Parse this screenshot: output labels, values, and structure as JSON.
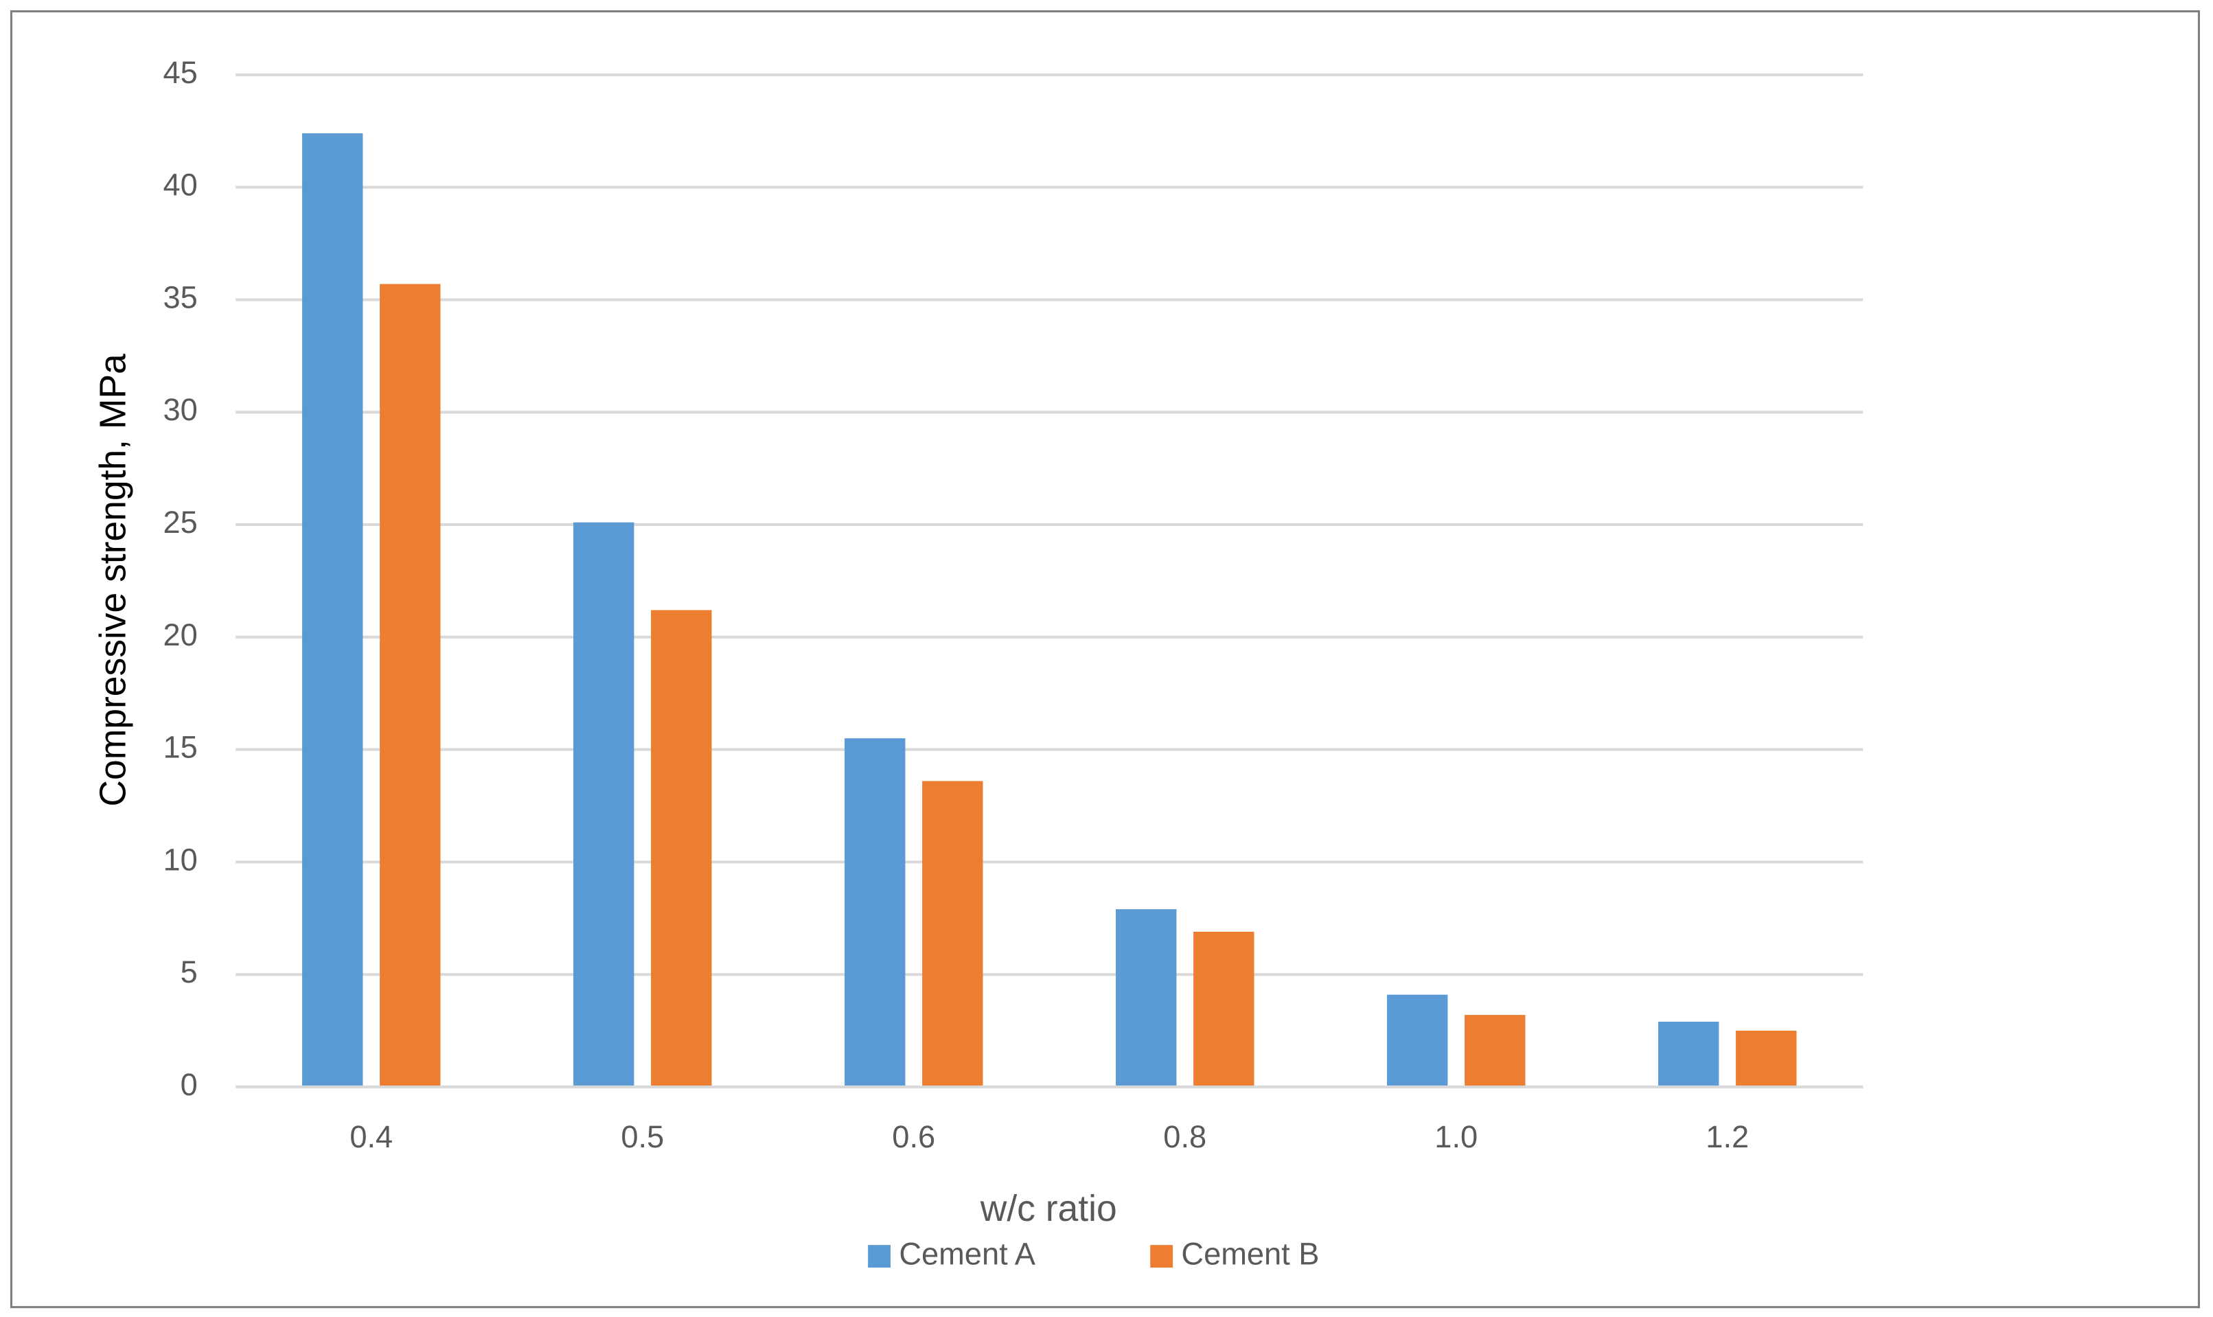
{
  "chart_data": {
    "type": "bar",
    "x_label": "w/c ratio",
    "y_label": "Compressive strength, MPa",
    "categories": [
      "0.4",
      "0.5",
      "0.6",
      "0.8",
      "1.0",
      "1.2"
    ],
    "series": [
      {
        "name": "Cement A",
        "color": "#5b9bd5",
        "values": [
          42.4,
          25.1,
          15.5,
          7.9,
          4.1,
          2.9
        ]
      },
      {
        "name": "Cement B",
        "color": "#ed7d31",
        "values": [
          35.7,
          21.2,
          13.6,
          6.9,
          3.2,
          2.5
        ]
      }
    ],
    "ylim": [
      0,
      45
    ],
    "yticks": [
      0,
      5,
      10,
      15,
      20,
      25,
      30,
      35,
      40,
      45
    ],
    "grid": true,
    "legend": "bottom"
  }
}
